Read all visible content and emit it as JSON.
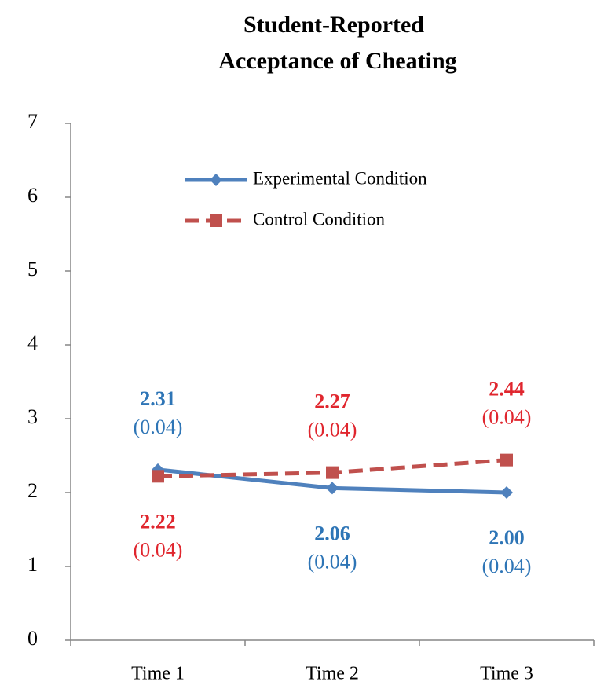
{
  "chart_data": {
    "type": "line",
    "title": [
      "Student-Reported",
      "Acceptance of Cheating"
    ],
    "categories": [
      "Time 1",
      "Time 2",
      "Time 3"
    ],
    "series": [
      {
        "name": "Experimental Condition",
        "color": "#4f81bd",
        "label_color": "#2e75b6",
        "dashed": false,
        "marker": "diamond",
        "values": [
          2.31,
          2.06,
          2.0
        ],
        "value_labels": [
          "2.31",
          "2.06",
          "2.00"
        ],
        "errors": [
          0.04,
          0.04,
          0.04
        ],
        "error_labels": [
          "(0.04)",
          "(0.04)",
          "(0.04)"
        ]
      },
      {
        "name": "Control Condition",
        "color": "#c0504d",
        "label_color": "#e0262e",
        "dashed": true,
        "marker": "square",
        "values": [
          2.22,
          2.27,
          2.44
        ],
        "value_labels": [
          "2.22",
          "2.27",
          "2.44"
        ],
        "errors": [
          0.04,
          0.04,
          0.04
        ],
        "error_labels": [
          "(0.04)",
          "(0.04)",
          "(0.04)"
        ]
      }
    ],
    "ylim": [
      0,
      7
    ],
    "yticks": [
      0,
      1,
      2,
      3,
      4,
      5,
      6,
      7
    ],
    "grid": false,
    "legend": "top"
  }
}
